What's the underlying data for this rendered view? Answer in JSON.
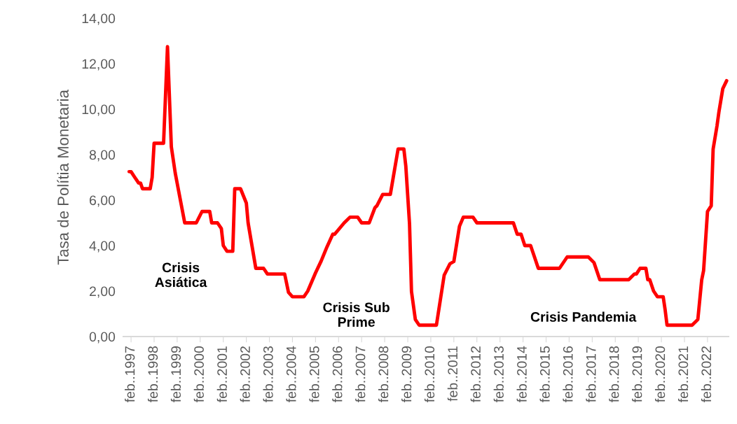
{
  "chart_data": {
    "type": "line",
    "ylabel": "Tasa de Polítia Monetaria",
    "x": [
      "1997-01",
      "1997-02",
      "1997-04",
      "1997-06",
      "1997-07",
      "1997-08",
      "1997-12",
      "1998-01",
      "1998-02",
      "1998-07",
      "1998-09",
      "1998-11",
      "1999-01",
      "1999-06",
      "1999-12",
      "2000-03",
      "2000-07",
      "2000-08",
      "2000-11",
      "2001-01",
      "2001-02",
      "2001-04",
      "2001-07",
      "2001-08",
      "2001-11",
      "2002-02",
      "2002-03",
      "2002-05",
      "2002-07",
      "2002-11",
      "2003-01",
      "2003-10",
      "2003-12",
      "2004-02",
      "2004-08",
      "2004-10",
      "2005-02",
      "2005-05",
      "2005-08",
      "2005-11",
      "2005-12",
      "2006-05",
      "2006-08",
      "2006-12",
      "2007-02",
      "2007-06",
      "2007-09",
      "2007-10",
      "2008-01",
      "2008-05",
      "2008-09",
      "2008-12",
      "2009-01",
      "2009-03",
      "2009-04",
      "2009-06",
      "2009-08",
      "2010-05",
      "2010-06",
      "2010-09",
      "2010-12",
      "2011-02",
      "2011-05",
      "2011-07",
      "2011-12",
      "2012-02",
      "2013-09",
      "2013-11",
      "2014-01",
      "2014-03",
      "2014-06",
      "2014-10",
      "2015-09",
      "2016-01",
      "2016-12",
      "2017-03",
      "2017-06",
      "2018-09",
      "2018-12",
      "2019-01",
      "2019-03",
      "2019-06",
      "2019-07",
      "2019-08",
      "2019-10",
      "2019-12",
      "2020-03",
      "2020-04",
      "2020-05",
      "2021-06",
      "2021-09",
      "2021-11",
      "2021-12",
      "2022-02",
      "2022-04",
      "2022-05",
      "2022-07",
      "2022-08",
      "2022-10",
      "2022-12"
    ],
    "series": [
      {
        "color": "#ff0000",
        "values": [
          7.25,
          7.25,
          7.0,
          6.75,
          6.75,
          6.5,
          6.5,
          7.0,
          8.5,
          8.5,
          12.75,
          8.34,
          7.2,
          5.0,
          5.0,
          5.5,
          5.5,
          5.0,
          5.0,
          4.75,
          4.0,
          3.75,
          3.75,
          6.5,
          6.5,
          5.87,
          5.0,
          4.0,
          3.0,
          3.0,
          2.75,
          2.75,
          1.94,
          1.75,
          1.75,
          2.0,
          2.8,
          3.32,
          3.94,
          4.5,
          4.5,
          5.0,
          5.25,
          5.25,
          5.0,
          5.0,
          5.67,
          5.75,
          6.25,
          6.25,
          8.25,
          8.25,
          7.5,
          4.95,
          1.98,
          0.75,
          0.5,
          0.5,
          1.06,
          2.7,
          3.2,
          3.3,
          4.85,
          5.25,
          5.25,
          5.0,
          5.0,
          4.5,
          4.5,
          4.0,
          4.0,
          3.0,
          3.0,
          3.5,
          3.5,
          3.25,
          2.5,
          2.5,
          2.75,
          2.75,
          3.0,
          3.0,
          2.5,
          2.5,
          2.0,
          1.75,
          1.75,
          1.17,
          0.5,
          0.5,
          0.75,
          2.49,
          2.9,
          5.5,
          5.75,
          8.24,
          9.26,
          9.88,
          10.9,
          11.25
        ]
      }
    ],
    "xlim": [
      "1996-10",
      "2023-01"
    ],
    "xticks": [
      {
        "value": "1997-02",
        "label": "feb..1997"
      },
      {
        "value": "1998-02",
        "label": "feb..1998"
      },
      {
        "value": "1999-02",
        "label": "feb..1999"
      },
      {
        "value": "2000-02",
        "label": "feb..2000"
      },
      {
        "value": "2001-02",
        "label": "feb..2001"
      },
      {
        "value": "2002-02",
        "label": "feb..2002"
      },
      {
        "value": "2003-02",
        "label": "feb..2003"
      },
      {
        "value": "2004-02",
        "label": "feb..2004"
      },
      {
        "value": "2005-02",
        "label": "feb..2005"
      },
      {
        "value": "2006-02",
        "label": "feb..2006"
      },
      {
        "value": "2007-02",
        "label": "feb..2007"
      },
      {
        "value": "2008-02",
        "label": "feb..2008"
      },
      {
        "value": "2009-02",
        "label": "feb..2009"
      },
      {
        "value": "2010-02",
        "label": "feb..2010"
      },
      {
        "value": "2011-02",
        "label": "feb..2011"
      },
      {
        "value": "2012-02",
        "label": "feb..2012"
      },
      {
        "value": "2013-02",
        "label": "feb..2013"
      },
      {
        "value": "2014-02",
        "label": "feb..2014"
      },
      {
        "value": "2015-02",
        "label": "feb..2015"
      },
      {
        "value": "2016-02",
        "label": "feb..2016"
      },
      {
        "value": "2017-02",
        "label": "feb..2017"
      },
      {
        "value": "2018-02",
        "label": "feb..2018"
      },
      {
        "value": "2019-02",
        "label": "feb..2019"
      },
      {
        "value": "2020-02",
        "label": "feb..2020"
      },
      {
        "value": "2021-02",
        "label": "feb..2021"
      },
      {
        "value": "2022-02",
        "label": "feb..2022"
      }
    ],
    "ylim": [
      0,
      14
    ],
    "yticks": [
      {
        "value": 0,
        "label": "0,00"
      },
      {
        "value": 2,
        "label": "2,00"
      },
      {
        "value": 4,
        "label": "4,00"
      },
      {
        "value": 6,
        "label": "6,00"
      },
      {
        "value": 8,
        "label": "8,00"
      },
      {
        "value": 10,
        "label": "10,00"
      },
      {
        "value": 12,
        "label": "12,00"
      },
      {
        "value": 14,
        "label": "14,00"
      }
    ],
    "annotations": [
      "Crisis\nAsiática",
      "Crisis Sub\nPrime",
      "Crisis Pandemia"
    ],
    "grid": false,
    "marker": "none",
    "line_style": "solid"
  }
}
